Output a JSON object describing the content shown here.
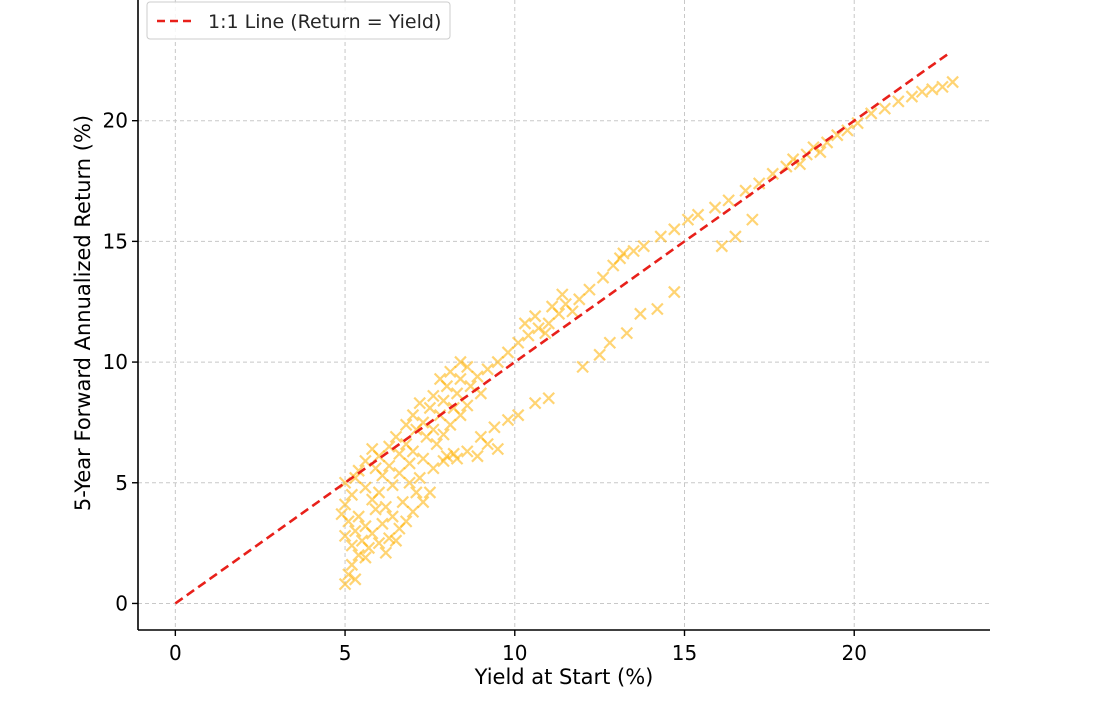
{
  "chart_data": {
    "type": "scatter",
    "title": "",
    "xlabel": "Yield at Start (%)",
    "ylabel": "5-Year Forward Annualized Return (%)",
    "xlim": [
      -1.1,
      24.0
    ],
    "ylim": [
      -1.1,
      25.0
    ],
    "x_ticks": [
      0,
      5,
      10,
      15,
      20
    ],
    "y_ticks": [
      0,
      5,
      10,
      15,
      20
    ],
    "x_tick_labels": [
      "0",
      "5",
      "10",
      "15",
      "20"
    ],
    "y_tick_labels": [
      "0",
      "5",
      "10",
      "15",
      "20"
    ],
    "grid": true,
    "legend_position": "top-left",
    "marker": "x",
    "colors": {
      "points": "#ffb000",
      "reference_line": "#e8201a",
      "grid": "#c8c8c8"
    },
    "reference_line": {
      "name": "1:1 Line (Return = Yield)",
      "x": [
        0,
        22.8
      ],
      "y": [
        0,
        22.8
      ],
      "style": "dashed"
    },
    "series": [
      {
        "points": [
          [
            5.0,
            0.8
          ],
          [
            5.1,
            1.2
          ],
          [
            5.2,
            1.6
          ],
          [
            5.3,
            1.0
          ],
          [
            5.4,
            2.0
          ],
          [
            5.2,
            2.4
          ],
          [
            5.0,
            2.8
          ],
          [
            5.3,
            3.0
          ],
          [
            5.5,
            2.6
          ],
          [
            5.6,
            1.9
          ],
          [
            5.7,
            2.3
          ],
          [
            5.1,
            3.4
          ],
          [
            4.9,
            3.7
          ],
          [
            5.0,
            4.1
          ],
          [
            5.4,
            3.6
          ],
          [
            5.6,
            3.2
          ],
          [
            5.8,
            2.9
          ],
          [
            6.0,
            2.5
          ],
          [
            6.2,
            2.1
          ],
          [
            6.3,
            2.7
          ],
          [
            6.1,
            3.3
          ],
          [
            5.9,
            3.9
          ],
          [
            5.2,
            4.5
          ],
          [
            5.0,
            5.0
          ],
          [
            5.3,
            5.2
          ],
          [
            5.6,
            4.8
          ],
          [
            5.8,
            4.3
          ],
          [
            6.0,
            4.6
          ],
          [
            6.2,
            4.0
          ],
          [
            6.4,
            3.6
          ],
          [
            6.6,
            3.1
          ],
          [
            6.5,
            2.6
          ],
          [
            6.8,
            3.4
          ],
          [
            7.0,
            3.8
          ],
          [
            6.7,
            4.2
          ],
          [
            6.4,
            4.9
          ],
          [
            6.1,
            5.3
          ],
          [
            5.9,
            5.6
          ],
          [
            5.6,
            5.9
          ],
          [
            5.4,
            5.5
          ],
          [
            6.3,
            5.7
          ],
          [
            6.6,
            5.4
          ],
          [
            6.9,
            5.0
          ],
          [
            7.1,
            4.6
          ],
          [
            7.3,
            4.2
          ],
          [
            7.5,
            4.6
          ],
          [
            7.2,
            5.2
          ],
          [
            6.9,
            5.8
          ],
          [
            6.6,
            6.2
          ],
          [
            6.3,
            6.5
          ],
          [
            6.0,
            6.1
          ],
          [
            5.8,
            6.4
          ],
          [
            6.5,
            6.9
          ],
          [
            6.8,
            6.6
          ],
          [
            7.0,
            6.3
          ],
          [
            7.3,
            6.0
          ],
          [
            7.6,
            5.6
          ],
          [
            7.9,
            5.9
          ],
          [
            8.2,
            6.2
          ],
          [
            7.7,
            6.6
          ],
          [
            7.4,
            6.9
          ],
          [
            7.1,
            7.2
          ],
          [
            6.8,
            7.4
          ],
          [
            7.0,
            7.8
          ],
          [
            7.3,
            7.5
          ],
          [
            7.6,
            7.2
          ],
          [
            7.9,
            7.0
          ],
          [
            8.1,
            7.4
          ],
          [
            7.8,
            7.8
          ],
          [
            7.5,
            8.1
          ],
          [
            7.2,
            8.3
          ],
          [
            7.6,
            8.6
          ],
          [
            7.9,
            8.4
          ],
          [
            8.2,
            8.1
          ],
          [
            8.4,
            7.8
          ],
          [
            8.6,
            8.2
          ],
          [
            8.3,
            8.7
          ],
          [
            8.0,
            9.0
          ],
          [
            7.8,
            9.3
          ],
          [
            8.1,
            9.6
          ],
          [
            8.4,
            9.3
          ],
          [
            8.7,
            9.0
          ],
          [
            9.0,
            8.7
          ],
          [
            8.9,
            9.4
          ],
          [
            8.6,
            9.8
          ],
          [
            8.4,
            10.0
          ],
          [
            9.2,
            9.7
          ],
          [
            9.5,
            10.0
          ],
          [
            9.8,
            10.4
          ],
          [
            10.1,
            10.8
          ],
          [
            10.4,
            11.1
          ],
          [
            10.7,
            11.4
          ],
          [
            10.3,
            11.6
          ],
          [
            10.6,
            11.9
          ],
          [
            11.0,
            11.6
          ],
          [
            11.3,
            12.0
          ],
          [
            11.5,
            12.4
          ],
          [
            11.7,
            12.1
          ],
          [
            11.9,
            12.6
          ],
          [
            11.4,
            12.8
          ],
          [
            11.1,
            12.3
          ],
          [
            10.9,
            11.2
          ],
          [
            12.2,
            13.0
          ],
          [
            12.6,
            13.5
          ],
          [
            12.9,
            14.0
          ],
          [
            13.2,
            14.5
          ],
          [
            13.5,
            14.6
          ],
          [
            13.8,
            14.8
          ],
          [
            13.1,
            14.3
          ],
          [
            14.3,
            15.2
          ],
          [
            14.7,
            15.5
          ],
          [
            15.1,
            15.9
          ],
          [
            15.4,
            16.1
          ],
          [
            15.9,
            16.4
          ],
          [
            16.3,
            16.7
          ],
          [
            16.8,
            17.1
          ],
          [
            17.2,
            17.4
          ],
          [
            17.6,
            17.8
          ],
          [
            18.0,
            18.1
          ],
          [
            18.2,
            18.4
          ],
          [
            18.4,
            18.2
          ],
          [
            18.6,
            18.6
          ],
          [
            18.8,
            18.9
          ],
          [
            19.0,
            18.7
          ],
          [
            19.2,
            19.1
          ],
          [
            19.5,
            19.4
          ],
          [
            19.8,
            19.6
          ],
          [
            20.1,
            19.9
          ],
          [
            20.5,
            20.3
          ],
          [
            20.9,
            20.5
          ],
          [
            21.3,
            20.8
          ],
          [
            21.7,
            21.0
          ],
          [
            22.0,
            21.2
          ],
          [
            22.3,
            21.3
          ],
          [
            22.6,
            21.4
          ],
          [
            22.9,
            21.6
          ],
          [
            8.0,
            6.1
          ],
          [
            8.3,
            6.0
          ],
          [
            8.6,
            6.3
          ],
          [
            8.9,
            6.1
          ],
          [
            9.2,
            6.6
          ],
          [
            9.0,
            6.9
          ],
          [
            9.4,
            7.3
          ],
          [
            9.8,
            7.6
          ],
          [
            9.5,
            6.4
          ],
          [
            10.1,
            7.8
          ],
          [
            10.6,
            8.3
          ],
          [
            11.0,
            8.5
          ],
          [
            12.0,
            9.8
          ],
          [
            12.5,
            10.3
          ],
          [
            13.3,
            11.2
          ],
          [
            12.8,
            10.8
          ],
          [
            14.2,
            12.2
          ],
          [
            14.7,
            12.9
          ],
          [
            16.1,
            14.8
          ],
          [
            16.5,
            15.2
          ],
          [
            17.0,
            15.9
          ],
          [
            13.7,
            12.0
          ]
        ]
      }
    ]
  }
}
